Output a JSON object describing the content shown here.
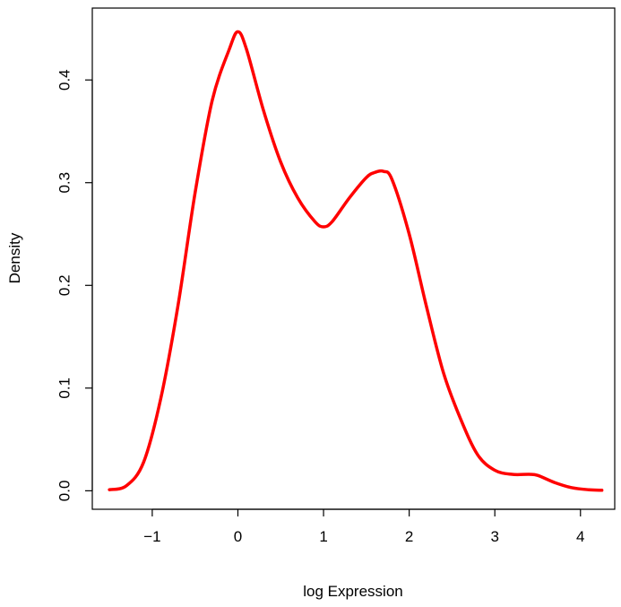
{
  "chart_data": {
    "type": "line",
    "title": "",
    "xlabel": "log Expression",
    "ylabel": "Density",
    "xlim": [
      -1.7,
      4.4
    ],
    "ylim": [
      -0.018,
      0.47
    ],
    "x_ticks": [
      -1,
      0,
      1,
      2,
      3,
      4
    ],
    "x_tick_labels": [
      "−1",
      "0",
      "1",
      "2",
      "3",
      "4"
    ],
    "y_ticks": [
      0.0,
      0.1,
      0.2,
      0.3,
      0.4
    ],
    "y_tick_labels": [
      "0.0",
      "0.1",
      "0.2",
      "0.3",
      "0.4"
    ],
    "grid": false,
    "series": [
      {
        "color": "#ff0000",
        "x": [
          -1.5,
          -1.3,
          -1.1,
          -0.9,
          -0.7,
          -0.5,
          -0.3,
          -0.1,
          0.0,
          0.1,
          0.3,
          0.5,
          0.7,
          0.9,
          1.0,
          1.1,
          1.3,
          1.5,
          1.6,
          1.7,
          1.8,
          2.0,
          2.2,
          2.4,
          2.6,
          2.8,
          3.0,
          3.2,
          3.4,
          3.5,
          3.7,
          3.9,
          4.1,
          4.25
        ],
        "y": [
          0.001,
          0.005,
          0.028,
          0.09,
          0.18,
          0.29,
          0.38,
          0.43,
          0.447,
          0.43,
          0.37,
          0.32,
          0.285,
          0.262,
          0.257,
          0.262,
          0.285,
          0.305,
          0.31,
          0.311,
          0.303,
          0.25,
          0.18,
          0.115,
          0.07,
          0.035,
          0.02,
          0.016,
          0.016,
          0.015,
          0.008,
          0.003,
          0.001,
          0.0005
        ]
      }
    ]
  }
}
